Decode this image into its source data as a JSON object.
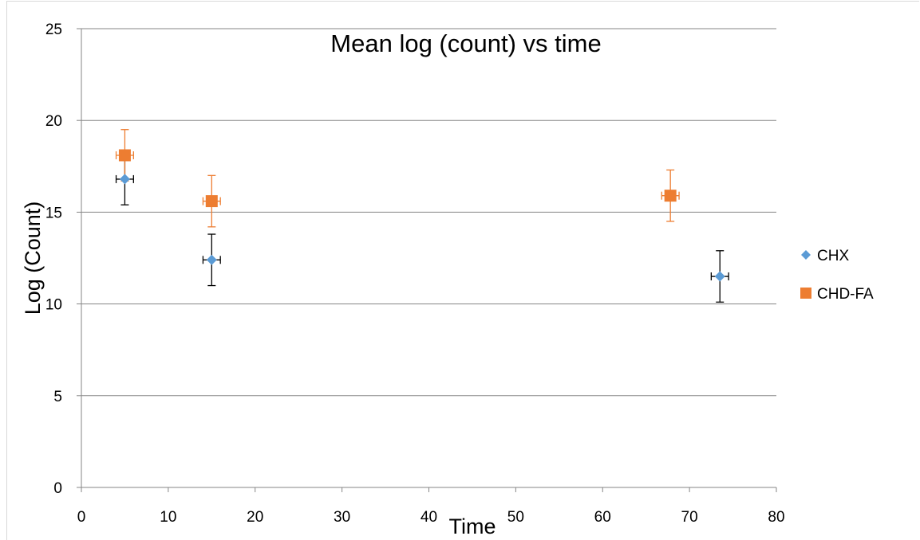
{
  "chart_data": {
    "type": "scatter",
    "title": "Mean log (count) vs time",
    "xlabel": "Time",
    "ylabel": "Log (Count)",
    "xlim": [
      0,
      80
    ],
    "ylim": [
      0,
      25
    ],
    "x_ticks": [
      0,
      10,
      20,
      30,
      40,
      50,
      60,
      70,
      80
    ],
    "y_ticks": [
      0,
      5,
      10,
      15,
      20,
      25
    ],
    "grid": "horizontal",
    "legend_position": "right",
    "series": [
      {
        "name": "CHX",
        "marker": "diamond",
        "color": "#5b9bd5",
        "error_bar_color": "#000000",
        "points": [
          {
            "x": 5,
            "y": 16.8,
            "y_err": 1.4,
            "x_err": 1
          },
          {
            "x": 15,
            "y": 12.4,
            "y_err": 1.4,
            "x_err": 1
          },
          {
            "x": 73.5,
            "y": 11.5,
            "y_err": 1.4,
            "x_err": 1
          }
        ]
      },
      {
        "name": "CHD-FA",
        "marker": "square",
        "color": "#ed7d31",
        "error_bar_color": "#ed7d31",
        "points": [
          {
            "x": 5,
            "y": 18.1,
            "y_err": 1.4,
            "x_err": 1
          },
          {
            "x": 15,
            "y": 15.6,
            "y_err": 1.4,
            "x_err": 1
          },
          {
            "x": 67.8,
            "y": 15.9,
            "y_err": 1.4,
            "x_err": 1
          }
        ]
      }
    ]
  }
}
